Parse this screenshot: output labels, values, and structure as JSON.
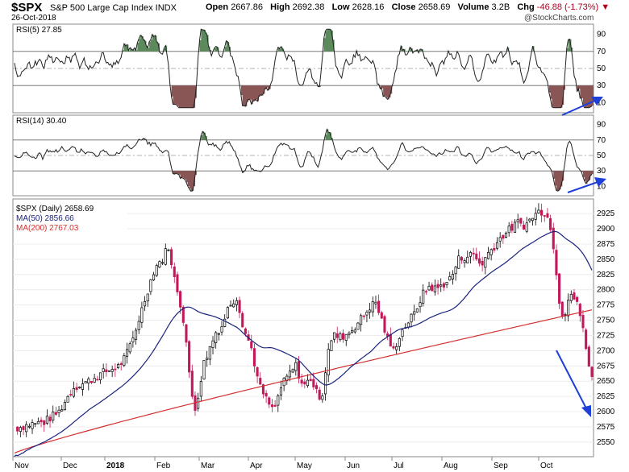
{
  "header": {
    "symbol": "$SPX",
    "name": "S&P 500 Large Cap Index INDX",
    "date": "26-Oct-2018",
    "brand": "@StockCharts.com",
    "open_label": "Open",
    "open": "2667.86",
    "high_label": "High",
    "high": "2692.38",
    "low_label": "Low",
    "low": "2628.16",
    "close_label": "Close",
    "close": "2658.69",
    "volume_label": "Volume",
    "volume": "3.2B",
    "chg_label": "Chg",
    "chg": "-46.88 (-1.73%)"
  },
  "panels": {
    "rsi5": {
      "label": "RSI(5) 27.85"
    },
    "rsi14": {
      "label": "RSI(14) 30.40"
    },
    "price": {
      "label": "$SPX (Daily) 2658.69",
      "ma50_label": "MA(50) 2856.66",
      "ma200_label": "MA(200) 2767.03"
    }
  },
  "colors": {
    "ma50": "#1a237e",
    "ma200": "#d32f2f",
    "up": "#000000",
    "down": "#c2185b",
    "overbought_fill": "#5c8a5c",
    "oversold_fill": "#8a5555",
    "arrow": "#1e3fd8"
  },
  "chart_data": [
    {
      "type": "line",
      "title": "RSI(5) 27.85",
      "ylim": [
        0,
        100
      ],
      "yticks": [
        10,
        30,
        50,
        70,
        90
      ],
      "reference_lines": [
        30,
        50,
        70
      ],
      "fill_above": 70,
      "fill_below": 30,
      "arrow": "rising into late Oct"
    },
    {
      "type": "line",
      "title": "RSI(14) 30.40",
      "ylim": [
        0,
        100
      ],
      "yticks": [
        10,
        30,
        50,
        70,
        90
      ],
      "reference_lines": [
        30,
        50,
        70
      ],
      "fill_above": 70,
      "fill_below": 30,
      "arrow": "rising into late Oct"
    },
    {
      "type": "candlestick",
      "title": "$SPX (Daily) 2658.69",
      "x_labels": [
        "Nov",
        "Dec",
        "2018",
        "Feb",
        "Mar",
        "Apr",
        "May",
        "Jun",
        "Jul",
        "Aug",
        "Sep",
        "Oct"
      ],
      "ylim": [
        2530,
        2945
      ],
      "yticks": [
        2550,
        2575,
        2600,
        2625,
        2650,
        2675,
        2700,
        2725,
        2750,
        2775,
        2800,
        2825,
        2850,
        2875,
        2900,
        2925
      ],
      "series": [
        {
          "name": "$SPX (Daily)",
          "closes": [
            [
              0,
              2572
            ],
            [
              10,
              2579
            ],
            [
              20,
              2583
            ],
            [
              30,
              2600
            ],
            [
              40,
              2640
            ],
            [
              50,
              2650
            ],
            [
              60,
              2664
            ],
            [
              70,
              2674
            ],
            [
              75,
              2690
            ],
            [
              80,
              2720
            ],
            [
              85,
              2760
            ],
            [
              90,
              2800
            ],
            [
              95,
              2838
            ],
            [
              100,
              2850
            ],
            [
              102,
              2862
            ],
            [
              104,
              2872
            ],
            [
              106,
              2838
            ],
            [
              110,
              2800
            ],
            [
              115,
              2740
            ],
            [
              118,
              2660
            ],
            [
              120,
              2625
            ],
            [
              122,
              2605
            ],
            [
              125,
              2640
            ],
            [
              128,
              2680
            ],
            [
              132,
              2705
            ],
            [
              136,
              2730
            ],
            [
              140,
              2740
            ],
            [
              145,
              2775
            ],
            [
              150,
              2788
            ],
            [
              155,
              2735
            ],
            [
              160,
              2704
            ],
            [
              165,
              2644
            ],
            [
              170,
              2620
            ],
            [
              175,
              2600
            ],
            [
              180,
              2640
            ],
            [
              185,
              2660
            ],
            [
              190,
              2675
            ],
            [
              195,
              2640
            ],
            [
              200,
              2655
            ],
            [
              205,
              2625
            ],
            [
              208,
              2630
            ],
            [
              212,
              2705
            ],
            [
              216,
              2725
            ],
            [
              220,
              2722
            ],
            [
              225,
              2728
            ],
            [
              230,
              2740
            ],
            [
              236,
              2758
            ],
            [
              240,
              2772
            ],
            [
              244,
              2779
            ],
            [
              248,
              2750
            ],
            [
              252,
              2718
            ],
            [
              256,
              2700
            ],
            [
              260,
              2725
            ],
            [
              265,
              2745
            ],
            [
              270,
              2760
            ],
            [
              275,
              2790
            ],
            [
              280,
              2805
            ],
            [
              285,
              2801
            ],
            [
              290,
              2810
            ],
            [
              295,
              2820
            ],
            [
              300,
              2850
            ],
            [
              305,
              2855
            ],
            [
              310,
              2858
            ],
            [
              315,
              2840
            ],
            [
              320,
              2860
            ],
            [
              325,
              2875
            ],
            [
              330,
              2890
            ],
            [
              335,
              2900
            ],
            [
              340,
              2910
            ],
            [
              345,
              2905
            ],
            [
              350,
              2920
            ],
            [
              355,
              2930
            ],
            [
              360,
              2925
            ],
            [
              363,
              2885
            ],
            [
              366,
              2830
            ],
            [
              369,
              2760
            ],
            [
              372,
              2765
            ],
            [
              375,
              2800
            ],
            [
              378,
              2785
            ],
            [
              381,
              2770
            ],
            [
              384,
              2738
            ],
            [
              387,
              2680
            ],
            [
              390,
              2658
            ]
          ]
        },
        {
          "name": "MA(50)",
          "last": 2856.66
        },
        {
          "name": "MA(200)",
          "last": 2767.03
        }
      ],
      "arrow": "declining into late Oct"
    }
  ]
}
